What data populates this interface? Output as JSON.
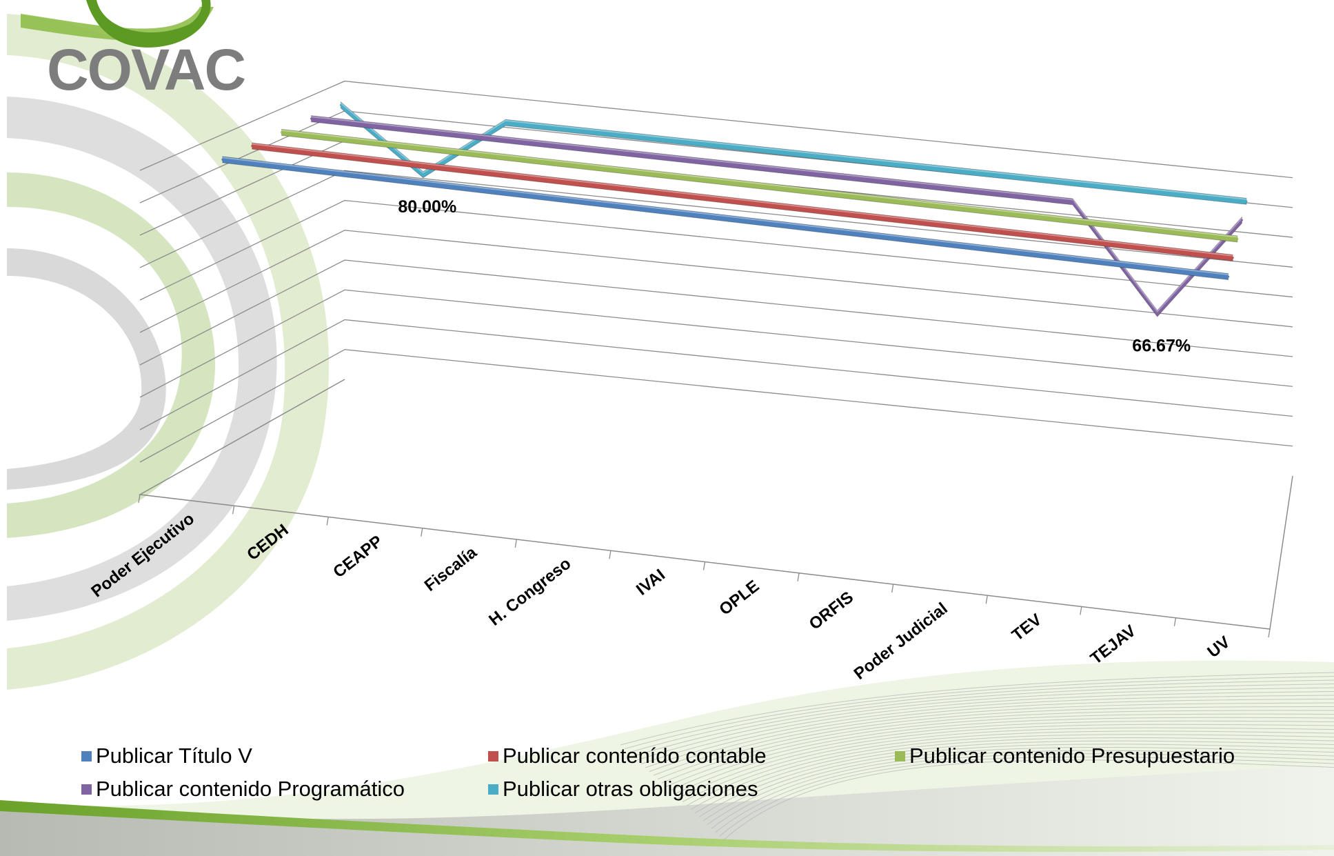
{
  "brand": {
    "logo_text": "COVAC"
  },
  "chart_data": {
    "type": "line",
    "title": "",
    "xlabel": "",
    "ylabel": "",
    "ylim": [
      0,
      100
    ],
    "grid": true,
    "legend_position": "bottom",
    "categories": [
      "Poder Ejecutivo",
      "CEDH",
      "CEAPP",
      "Fiscalía",
      "H. Congreso",
      "IVAI",
      "OPLE",
      "ORFIS",
      "Poder Judicial",
      "TEV",
      "TEJAV",
      "UV"
    ],
    "series": [
      {
        "name": "Publicar Título V",
        "color": "#4f81bd",
        "values": [
          100,
          100,
          100,
          100,
          100,
          100,
          100,
          100,
          100,
          100,
          100,
          100
        ]
      },
      {
        "name": "Publicar contenído contable",
        "color": "#c0504d",
        "values": [
          100,
          100,
          100,
          100,
          100,
          100,
          100,
          100,
          100,
          100,
          100,
          100
        ]
      },
      {
        "name": "Publicar contenido Presupuestario",
        "color": "#9bbb59",
        "values": [
          100,
          100,
          100,
          100,
          100,
          100,
          100,
          100,
          100,
          100,
          100,
          100
        ]
      },
      {
        "name": "Publicar contenido Programático",
        "color": "#8064a2",
        "values": [
          100,
          100,
          100,
          100,
          100,
          100,
          100,
          100,
          100,
          100,
          66.67,
          100
        ]
      },
      {
        "name": "Publicar otras obligaciones",
        "color": "#4bacc6",
        "values": [
          100,
          80,
          100,
          100,
          100,
          100,
          100,
          100,
          100,
          100,
          100,
          100
        ]
      }
    ],
    "data_labels": [
      {
        "series": "Publicar otras obligaciones",
        "category": "CEDH",
        "text": "80.00%"
      },
      {
        "series": "Publicar contenido Programático",
        "category": "TEJAV",
        "text": "66.67%"
      }
    ]
  }
}
